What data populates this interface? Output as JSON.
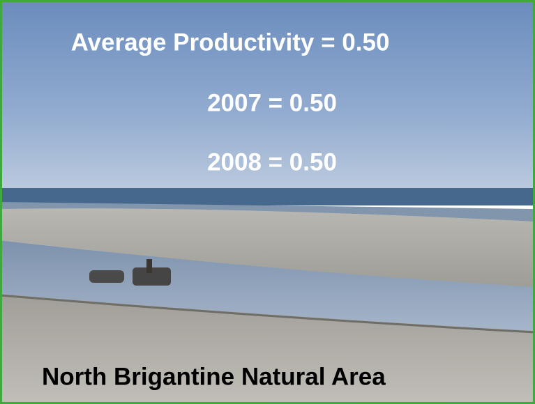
{
  "slide": {
    "lines": [
      "Average Productivity = 0.50",
      "2007 = 0.50",
      "2008 = 0.50"
    ],
    "caption": "North Brigantine Natural Area"
  }
}
